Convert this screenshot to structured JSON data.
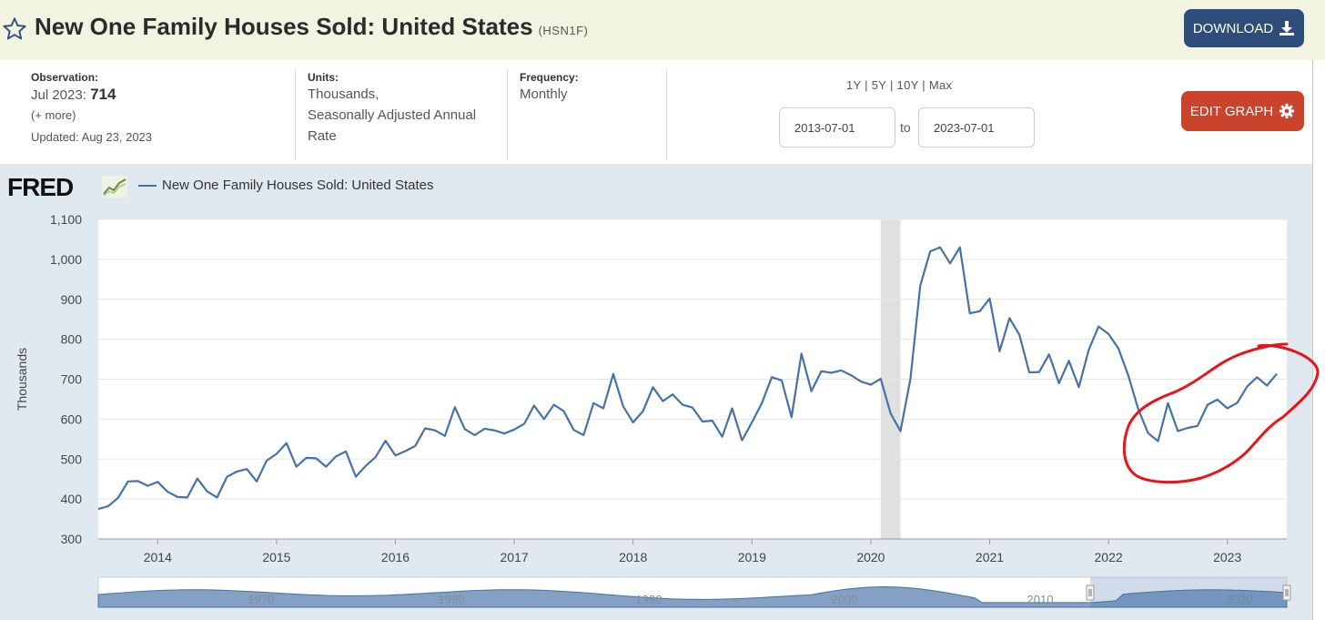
{
  "header": {
    "title": "New One Family Houses Sold: United States",
    "series_id": "(HSN1F)",
    "download_label": "DOWNLOAD",
    "star_icon": "star-outline-icon",
    "download_icon": "download-icon"
  },
  "meta": {
    "observation_label": "Observation:",
    "observation_date": "Jul 2023:",
    "observation_value": "714",
    "more": "(+ more)",
    "updated": "Updated: Aug 23, 2023",
    "units_label": "Units:",
    "units_line1": "Thousands,",
    "units_line2": "Seasonally Adjusted Annual",
    "units_line3": "Rate",
    "frequency_label": "Frequency:",
    "frequency_value": "Monthly"
  },
  "controls": {
    "range_links": "1Y | 5Y | 10Y | Max",
    "start_date": "2013-07-01",
    "to": "to",
    "end_date": "2023-07-01",
    "edit_label": "EDIT GRAPH",
    "edit_icon": "gear-icon"
  },
  "brand": {
    "logo": "FRED"
  },
  "colors": {
    "series": "#4572a7",
    "annotation": "#e8141a",
    "recession": "#e0e0e0",
    "download_bg": "#2e4d7b",
    "edit_bg": "#c9432d"
  },
  "navigator": {
    "year_labels": [
      "1970",
      "1980",
      "1990",
      "2000",
      "2010",
      "2020"
    ]
  },
  "chart_data": {
    "type": "line",
    "title": "",
    "legend": "New One Family Houses Sold: United States",
    "xlabel": "",
    "ylabel": "Thousands",
    "ylim": [
      300,
      1100
    ],
    "xlim": [
      "2013-07",
      "2023-07"
    ],
    "y_ticks": [
      "300",
      "400",
      "500",
      "600",
      "700",
      "800",
      "900",
      "1,000",
      "1,100"
    ],
    "x_ticks": [
      "2014",
      "2015",
      "2016",
      "2017",
      "2018",
      "2019",
      "2020",
      "2021",
      "2022",
      "2023"
    ],
    "grid": true,
    "recession_shading": [
      "2020-02",
      "2020-04"
    ],
    "series": [
      {
        "name": "New One Family Houses Sold: United States",
        "start": "2013-07",
        "frequency": "monthly",
        "values": [
          375,
          382,
          403,
          444,
          445,
          433,
          443,
          418,
          405,
          404,
          451,
          419,
          404,
          456,
          469,
          475,
          444,
          496,
          513,
          540,
          481,
          503,
          502,
          481,
          507,
          519,
          456,
          483,
          505,
          546,
          509,
          520,
          533,
          577,
          572,
          558,
          630,
          575,
          560,
          576,
          572,
          564,
          574,
          588,
          634,
          600,
          636,
          620,
          573,
          560,
          640,
          627,
          713,
          632,
          592,
          620,
          680,
          645,
          662,
          636,
          629,
          594,
          596,
          556,
          627,
          547,
          592,
          640,
          705,
          697,
          605,
          764,
          670,
          720,
          716,
          722,
          710,
          694,
          686,
          701,
          614,
          570,
          700,
          935,
          1020,
          1030,
          990,
          1030,
          865,
          870,
          902,
          770,
          853,
          811,
          717,
          718,
          762,
          690,
          746,
          680,
          773,
          832,
          813,
          777,
          709,
          625,
          565,
          545,
          640,
          570,
          578,
          583,
          636,
          649,
          627,
          641,
          682,
          705,
          684,
          714
        ]
      }
    ]
  }
}
